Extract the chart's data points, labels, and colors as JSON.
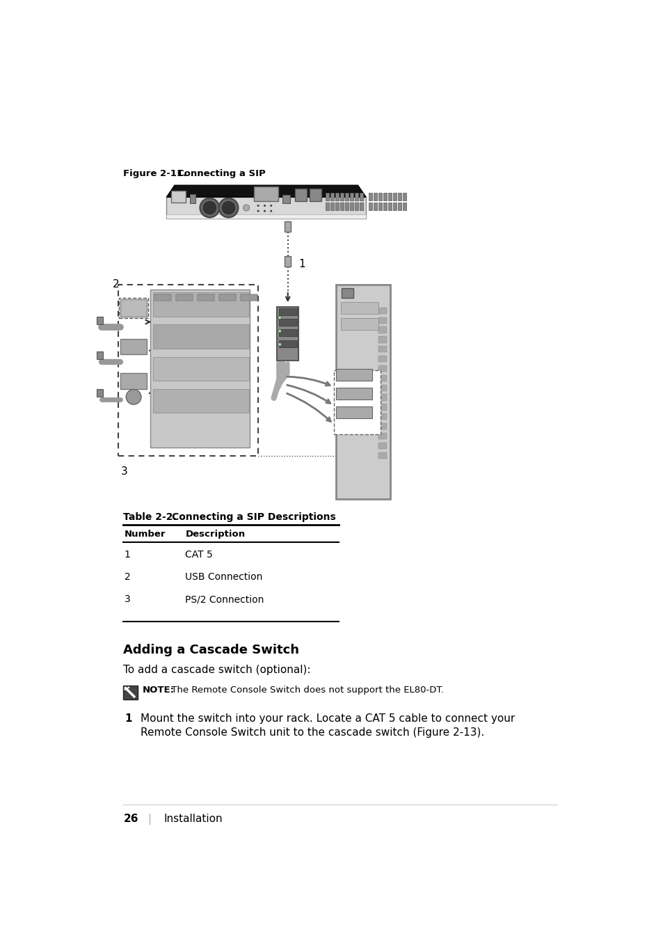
{
  "bg_color": "#ffffff",
  "figure_label": "Figure 2-11.",
  "figure_title": "Connecting a SIP",
  "table_title": "Table 2-2.",
  "table_subtitle": "Connecting a SIP Descriptions",
  "table_headers": [
    "Number",
    "Description"
  ],
  "table_rows": [
    [
      "1",
      "CAT 5"
    ],
    [
      "2",
      "USB Connection"
    ],
    [
      "3",
      "PS/2 Connection"
    ]
  ],
  "section_title": "Adding a Cascade Switch",
  "intro_text": "To add a cascade switch (optional):",
  "note_bold": "NOTE:",
  "note_text": " The Remote Console Switch does not support the EL80-DT.",
  "step1_num": "1",
  "step1_text": "Mount the switch into your rack. Locate a CAT 5 cable to connect your\nRemote Console Switch unit to the cascade switch (Figure 2-13).",
  "footer_page": "26",
  "footer_sep": "|",
  "footer_text": "Installation"
}
